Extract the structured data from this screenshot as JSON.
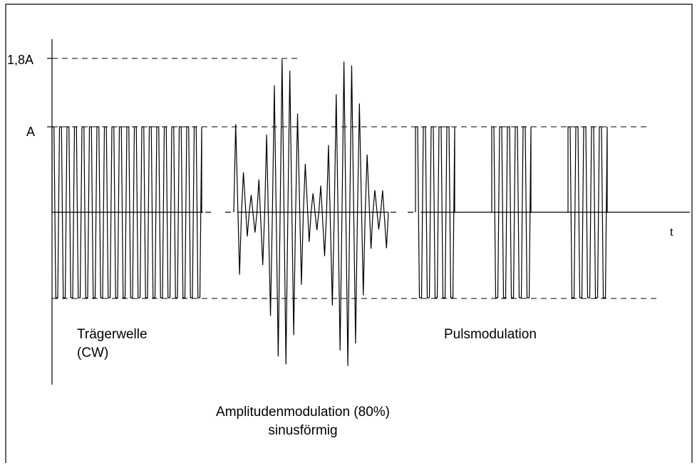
{
  "labels": {
    "amplitude_high": "1,8A",
    "amplitude": "A",
    "time_axis": "t",
    "cw_line1": "Trägerwelle",
    "cw_line2": "(CW)",
    "am_line1": "Amplitudenmodulation (80%)",
    "am_line2": "sinusförmig",
    "pulse": "Pulsmodulation"
  },
  "signal": {
    "carrier_amplitude": 1,
    "am_peak_amplitude": 1.8,
    "am_modulation_percent": 80,
    "pulse_bursts": 3
  },
  "colors": {
    "line": "#000000",
    "background": "#ffffff"
  }
}
